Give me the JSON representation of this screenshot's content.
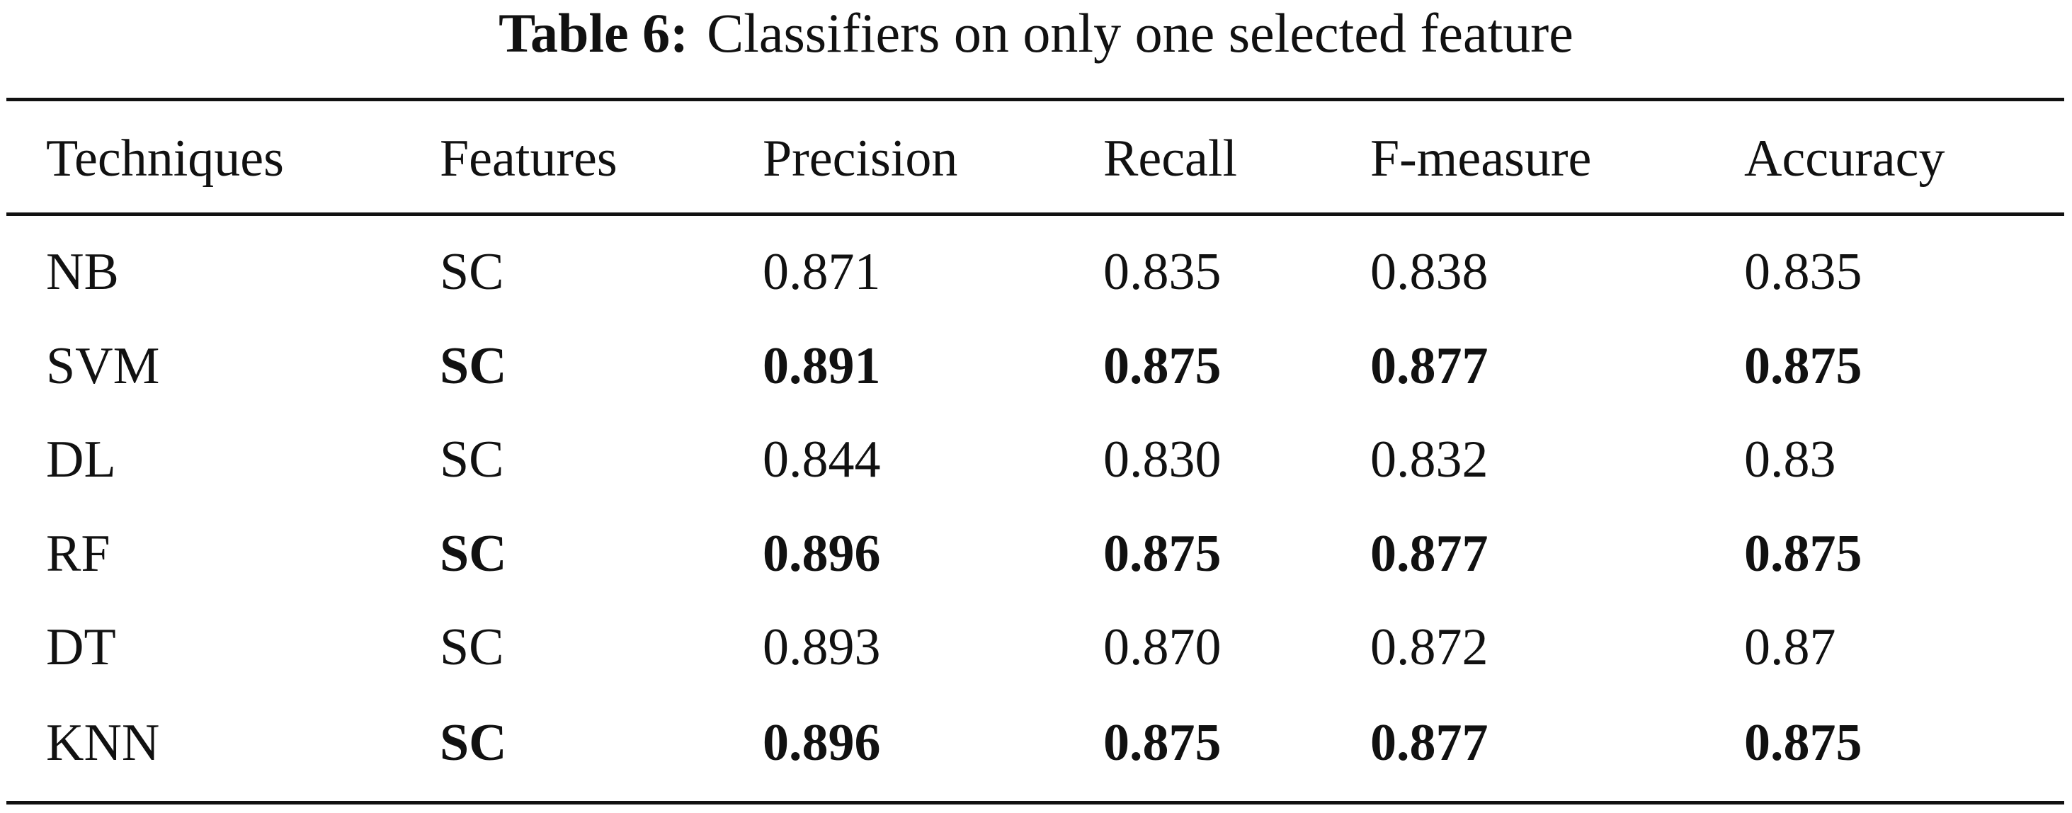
{
  "caption": {
    "label": "Table 6:",
    "text": "Classifiers on only one selected feature"
  },
  "table": {
    "header": [
      "Techniques",
      "Features",
      "Precision",
      "Recall",
      "F-measure",
      "Accuracy"
    ],
    "rows": [
      {
        "cells": [
          "NB",
          "SC",
          "0.871",
          "0.835",
          "0.838",
          "0.835"
        ],
        "bold": false
      },
      {
        "cells": [
          "SVM",
          "SC",
          "0.891",
          "0.875",
          "0.877",
          "0.875"
        ],
        "bold": true
      },
      {
        "cells": [
          "DL",
          "SC",
          "0.844",
          "0.830",
          "0.832",
          "0.83"
        ],
        "bold": false
      },
      {
        "cells": [
          "RF",
          "SC",
          "0.896",
          "0.875",
          "0.877",
          "0.875"
        ],
        "bold": true
      },
      {
        "cells": [
          "DT",
          "SC",
          "0.893",
          "0.870",
          "0.872",
          "0.87"
        ],
        "bold": false
      },
      {
        "cells": [
          "KNN",
          "SC",
          "0.896",
          "0.875",
          "0.877",
          "0.875"
        ],
        "bold": true
      }
    ]
  }
}
